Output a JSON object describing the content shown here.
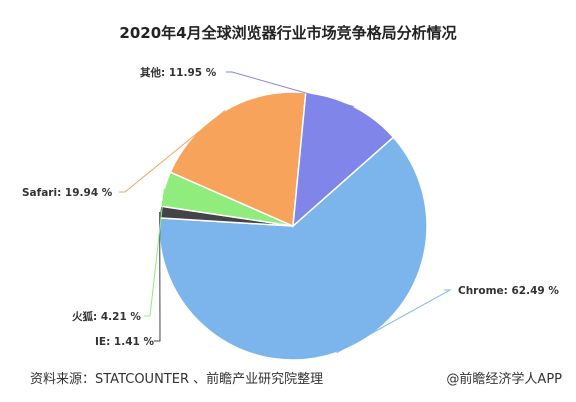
{
  "chart_data": {
    "type": "pie",
    "title": "2020年4月全球浏览器行业市场竞争格局分析情况",
    "unit": "%",
    "slices": [
      {
        "name": "Chrome",
        "value": 62.49,
        "label": "Chrome: 62.49 %",
        "color": "#7cb5ec"
      },
      {
        "name": "IE",
        "value": 1.41,
        "label": "IE: 1.41 %",
        "color": "#434348"
      },
      {
        "name": "火狐",
        "value": 4.21,
        "label": "火狐: 4.21 %",
        "color": "#90ed7d"
      },
      {
        "name": "Safari",
        "value": 19.94,
        "label": "Safari: 19.94 %",
        "color": "#f7a35c"
      },
      {
        "name": "其他",
        "value": 11.95,
        "label": "其他: 11.95 %",
        "color": "#8085e9"
      }
    ]
  },
  "footer": {
    "source": "资料来源：STATCOUNTER 、前瞻产业研究院整理",
    "credit": "@前瞻经济学人APP"
  }
}
